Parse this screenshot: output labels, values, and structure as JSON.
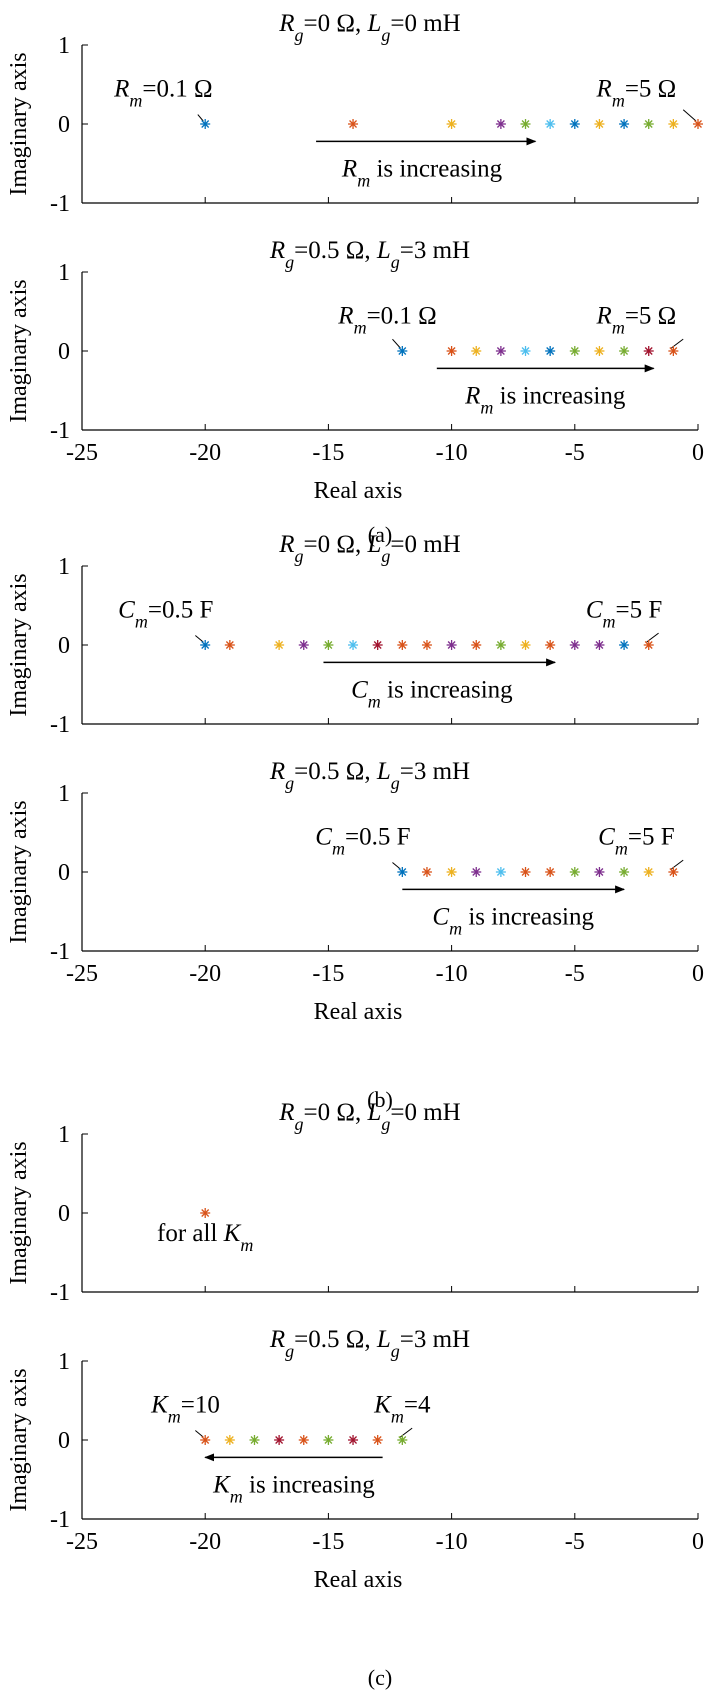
{
  "common": {
    "xlabel": "Real axis",
    "ylabel": "Imaginary axis",
    "x_ticks": [
      "-25",
      "-20",
      "-15",
      "-10",
      "-5",
      "0"
    ],
    "y_ticks": [
      "1",
      "0",
      "-1"
    ],
    "xlim": [
      -25,
      0
    ],
    "ylim": [
      -1,
      1
    ]
  },
  "group_labels": [
    "(a)",
    "(b)",
    "(c)"
  ],
  "colors": [
    "#0072BD",
    "#D95319",
    "#EDB120",
    "#7E2F8E",
    "#77AC30",
    "#4DBEEE",
    "#A2142F"
  ],
  "chart_data": [
    {
      "type": "scatter",
      "group": "(a)",
      "title_parts": [
        {
          "t": "R",
          "i": true
        },
        {
          "t": "g",
          "sub": true,
          "i": true
        },
        {
          "t": "=0 Ω, "
        },
        {
          "t": "L",
          "i": true
        },
        {
          "t": "g",
          "sub": true,
          "i": true
        },
        {
          "t": "=0 mH"
        }
      ],
      "x": [
        -20,
        -14,
        -10,
        -8,
        -7,
        -6,
        -5,
        -4,
        -3,
        -2,
        -1,
        0
      ],
      "y": [
        0,
        0,
        0,
        0,
        0,
        0,
        0,
        0,
        0,
        0,
        0,
        0
      ],
      "point_colors": [
        0,
        1,
        2,
        3,
        4,
        5,
        0,
        2,
        0,
        4,
        2,
        1
      ],
      "annotations": [
        {
          "parts": [
            {
              "t": "R",
              "i": true
            },
            {
              "t": "m",
              "sub": true,
              "i": true
            },
            {
              "t": "=0.1 Ω"
            }
          ],
          "tx": -21.7,
          "ty": 0.32,
          "px": -20,
          "py": 0,
          "lx": -20.3,
          "ly": 0.12
        },
        {
          "parts": [
            {
              "t": "R",
              "i": true
            },
            {
              "t": "m",
              "sub": true,
              "i": true
            },
            {
              "t": "=5 Ω"
            }
          ],
          "tx": -2.5,
          "ty": 0.32,
          "px": 0,
          "py": 0,
          "lx": -0.6,
          "ly": 0.18
        }
      ],
      "arrow": {
        "x1": -15.5,
        "x2": -6.6,
        "y": -0.22,
        "label_parts": [
          {
            "t": "R",
            "i": true
          },
          {
            "t": "m",
            "sub": true,
            "i": true
          },
          {
            "t": " is increasing"
          }
        ],
        "lx": -11.2,
        "ly": -0.55
      }
    },
    {
      "type": "scatter",
      "group": "(a)",
      "title_parts": [
        {
          "t": "R",
          "i": true
        },
        {
          "t": "g",
          "sub": true,
          "i": true
        },
        {
          "t": "=0.5 Ω, "
        },
        {
          "t": "L",
          "i": true
        },
        {
          "t": "g",
          "sub": true,
          "i": true
        },
        {
          "t": "=3 mH"
        }
      ],
      "x": [
        -12,
        -10,
        -9,
        -8,
        -7,
        -6,
        -5,
        -4,
        -3,
        -2,
        -1
      ],
      "y": [
        0,
        0,
        0,
        0,
        0,
        0,
        0,
        0,
        0,
        0,
        0
      ],
      "point_colors": [
        0,
        1,
        2,
        3,
        5,
        0,
        4,
        2,
        4,
        6,
        1
      ],
      "annotations": [
        {
          "parts": [
            {
              "t": "R",
              "i": true
            },
            {
              "t": "m",
              "sub": true,
              "i": true
            },
            {
              "t": "=0.1 Ω"
            }
          ],
          "tx": -12.6,
          "ty": 0.32,
          "px": -12,
          "py": 0,
          "lx": -12.4,
          "ly": 0.15
        },
        {
          "parts": [
            {
              "t": "R",
              "i": true
            },
            {
              "t": "m",
              "sub": true,
              "i": true
            },
            {
              "t": "=5 Ω"
            }
          ],
          "tx": -2.5,
          "ty": 0.32,
          "px": -1,
          "py": 0,
          "lx": -0.6,
          "ly": 0.15
        }
      ],
      "arrow": {
        "x1": -10.6,
        "x2": -1.8,
        "y": -0.22,
        "label_parts": [
          {
            "t": "R",
            "i": true
          },
          {
            "t": "m",
            "sub": true,
            "i": true
          },
          {
            "t": " is increasing"
          }
        ],
        "lx": -6.2,
        "ly": -0.55
      }
    },
    {
      "type": "scatter",
      "group": "(b)",
      "title_parts": [
        {
          "t": "R",
          "i": true
        },
        {
          "t": "g",
          "sub": true,
          "i": true
        },
        {
          "t": "=0 Ω, "
        },
        {
          "t": "L",
          "i": true
        },
        {
          "t": "g",
          "sub": true,
          "i": true
        },
        {
          "t": "=0 mH"
        }
      ],
      "x": [
        -20,
        -19,
        -17,
        -16,
        -15,
        -14,
        -13,
        -12,
        -11,
        -10,
        -9,
        -8,
        -7,
        -6,
        -5,
        -4,
        -3,
        -2
      ],
      "y": [
        0,
        0,
        0,
        0,
        0,
        0,
        0,
        0,
        0,
        0,
        0,
        0,
        0,
        0,
        0,
        0,
        0,
        0
      ],
      "point_colors": [
        0,
        1,
        2,
        3,
        4,
        5,
        6,
        1,
        1,
        3,
        1,
        4,
        2,
        1,
        3,
        3,
        0,
        1
      ],
      "annotations": [
        {
          "parts": [
            {
              "t": "C",
              "i": true
            },
            {
              "t": "m",
              "sub": true,
              "i": true
            },
            {
              "t": "=0.5 F"
            }
          ],
          "tx": -21.6,
          "ty": 0.32,
          "px": -20,
          "py": 0,
          "lx": -20.4,
          "ly": 0.12
        },
        {
          "parts": [
            {
              "t": "C",
              "i": true
            },
            {
              "t": "m",
              "sub": true,
              "i": true
            },
            {
              "t": "=5 F"
            }
          ],
          "tx": -3.0,
          "ty": 0.32,
          "px": -2,
          "py": 0,
          "lx": -1.6,
          "ly": 0.15
        }
      ],
      "arrow": {
        "x1": -15.2,
        "x2": -5.8,
        "y": -0.22,
        "label_parts": [
          {
            "t": "C",
            "i": true
          },
          {
            "t": "m",
            "sub": true,
            "i": true
          },
          {
            "t": " is increasing"
          }
        ],
        "lx": -10.8,
        "ly": -0.55
      }
    },
    {
      "type": "scatter",
      "group": "(b)",
      "title_parts": [
        {
          "t": "R",
          "i": true
        },
        {
          "t": "g",
          "sub": true,
          "i": true
        },
        {
          "t": "=0.5 Ω, "
        },
        {
          "t": "L",
          "i": true
        },
        {
          "t": "g",
          "sub": true,
          "i": true
        },
        {
          "t": "=3 mH"
        }
      ],
      "x": [
        -12,
        -11,
        -10,
        -9,
        -8,
        -7,
        -6,
        -5,
        -4,
        -3,
        -2,
        -1
      ],
      "y": [
        0,
        0,
        0,
        0,
        0,
        0,
        0,
        0,
        0,
        0,
        0,
        0
      ],
      "point_colors": [
        0,
        1,
        2,
        3,
        5,
        1,
        1,
        4,
        3,
        4,
        2,
        1
      ],
      "annotations": [
        {
          "parts": [
            {
              "t": "C",
              "i": true
            },
            {
              "t": "m",
              "sub": true,
              "i": true
            },
            {
              "t": "=0.5 F"
            }
          ],
          "tx": -13.6,
          "ty": 0.32,
          "px": -12,
          "py": 0,
          "lx": -12.4,
          "ly": 0.12
        },
        {
          "parts": [
            {
              "t": "C",
              "i": true
            },
            {
              "t": "m",
              "sub": true,
              "i": true
            },
            {
              "t": "=5 F"
            }
          ],
          "tx": -2.5,
          "ty": 0.32,
          "px": -1,
          "py": 0,
          "lx": -0.6,
          "ly": 0.15
        }
      ],
      "arrow": {
        "x1": -12.0,
        "x2": -3.0,
        "y": -0.22,
        "label_parts": [
          {
            "t": "C",
            "i": true
          },
          {
            "t": "m",
            "sub": true,
            "i": true
          },
          {
            "t": " is increasing"
          }
        ],
        "lx": -7.5,
        "ly": -0.55
      }
    },
    {
      "type": "scatter",
      "group": "(c)",
      "title_parts": [
        {
          "t": "R",
          "i": true
        },
        {
          "t": "g",
          "sub": true,
          "i": true
        },
        {
          "t": "=0 Ω, "
        },
        {
          "t": "L",
          "i": true
        },
        {
          "t": "g",
          "sub": true,
          "i": true
        },
        {
          "t": "=0 mH"
        }
      ],
      "x": [
        -20
      ],
      "y": [
        0
      ],
      "point_colors": [
        1
      ],
      "annotations": [
        {
          "parts": [
            {
              "t": "for all "
            },
            {
              "t": "K",
              "i": true
            },
            {
              "t": "m",
              "sub": true,
              "i": true
            }
          ],
          "tx": -20,
          "ty": -0.38,
          "px": null,
          "py": null,
          "lx": null,
          "ly": null
        }
      ],
      "arrow": null
    },
    {
      "type": "scatter",
      "group": "(c)",
      "title_parts": [
        {
          "t": "R",
          "i": true
        },
        {
          "t": "g",
          "sub": true,
          "i": true
        },
        {
          "t": "=0.5 Ω, "
        },
        {
          "t": "L",
          "i": true
        },
        {
          "t": "g",
          "sub": true,
          "i": true
        },
        {
          "t": "=3 mH"
        }
      ],
      "x": [
        -20,
        -19,
        -18,
        -17,
        -16,
        -15,
        -14,
        -13,
        -12
      ],
      "y": [
        0,
        0,
        0,
        0,
        0,
        0,
        0,
        0,
        0
      ],
      "point_colors": [
        1,
        2,
        4,
        6,
        1,
        4,
        6,
        1,
        4
      ],
      "annotations": [
        {
          "parts": [
            {
              "t": "K",
              "i": true
            },
            {
              "t": "m",
              "sub": true,
              "i": true
            },
            {
              "t": "=10"
            }
          ],
          "tx": -20.8,
          "ty": 0.32,
          "px": -20,
          "py": 0,
          "lx": -20.4,
          "ly": 0.12
        },
        {
          "parts": [
            {
              "t": "K",
              "i": true
            },
            {
              "t": "m",
              "sub": true,
              "i": true
            },
            {
              "t": "=4"
            }
          ],
          "tx": -12.0,
          "ty": 0.32,
          "px": -12,
          "py": 0,
          "lx": -11.6,
          "ly": 0.15
        }
      ],
      "arrow": {
        "x1": -12.8,
        "x2": -20.0,
        "y": -0.22,
        "label_parts": [
          {
            "t": "K",
            "i": true
          },
          {
            "t": "m",
            "sub": true,
            "i": true
          },
          {
            "t": " is increasing"
          }
        ],
        "lx": -16.4,
        "ly": -0.55
      }
    }
  ]
}
